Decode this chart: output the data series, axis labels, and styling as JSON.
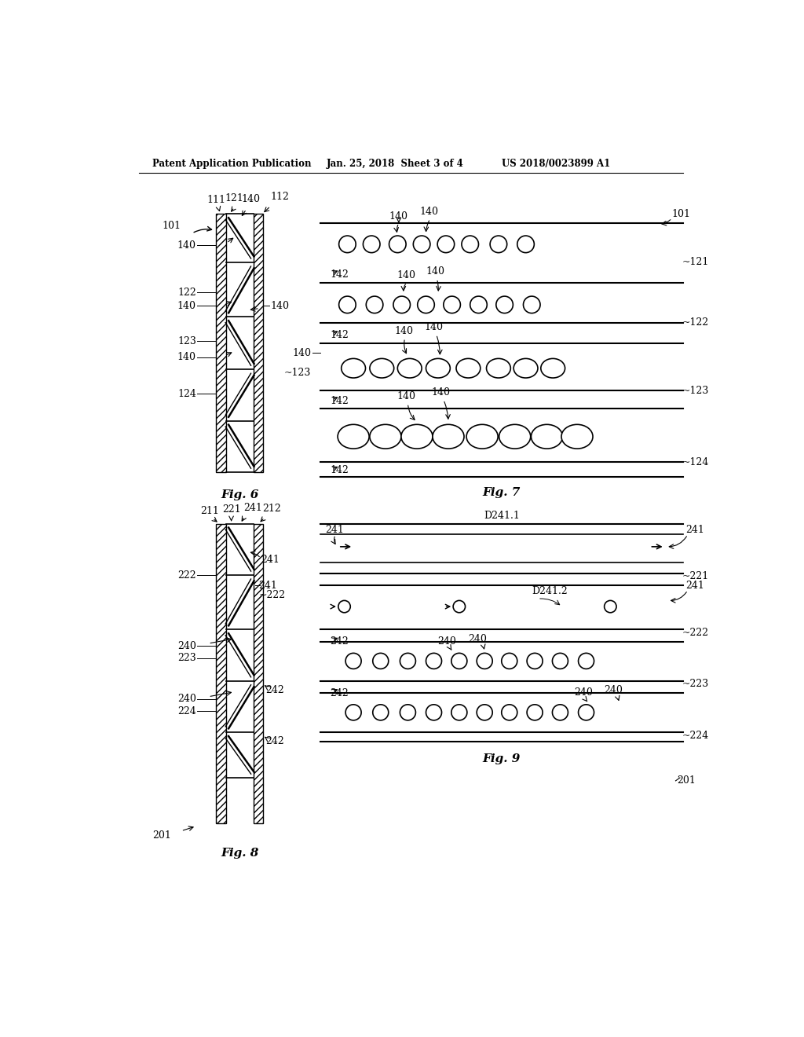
{
  "header_left": "Patent Application Publication",
  "header_mid": "Jan. 25, 2018  Sheet 3 of 4",
  "header_right": "US 2018/0023899 A1",
  "fig6_label": "Fig. 6",
  "fig7_label": "Fig. 7",
  "fig8_label": "Fig. 8",
  "fig9_label": "Fig. 9",
  "bg_color": "#ffffff",
  "line_color": "#000000",
  "label_fontsize": 9,
  "header_fontsize": 8.5
}
